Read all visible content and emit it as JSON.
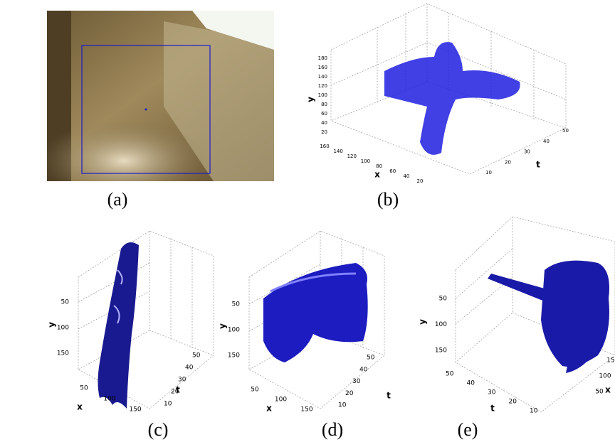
{
  "panels": [
    {
      "caption": "(a)"
    },
    {
      "caption": "(b)",
      "y_label": "y",
      "x_label": "x",
      "t_label": "t",
      "y_ticks": [
        20,
        40,
        60,
        80,
        100,
        120,
        140,
        160,
        180
      ],
      "x_ticks": [
        160,
        140,
        120,
        100,
        80,
        60,
        40,
        20
      ],
      "t_ticks": [
        10,
        20,
        30,
        40,
        50
      ]
    },
    {
      "caption": "(c)",
      "y_label": "y",
      "x_label": "x",
      "t_label": "t",
      "y_ticks": [
        50,
        100,
        150
      ],
      "x_ticks": [
        50,
        100,
        150
      ],
      "t_ticks": [
        10,
        20,
        30,
        40,
        50
      ]
    },
    {
      "caption": "(d)",
      "y_label": "y",
      "x_label": "x",
      "t_label": "t",
      "y_ticks": [
        50,
        100,
        150
      ],
      "x_ticks": [
        50,
        100,
        150
      ],
      "t_ticks": [
        10,
        20,
        30,
        40,
        50
      ]
    },
    {
      "caption": "(e)",
      "y_label": "y",
      "x_label": "x",
      "t_label": "t",
      "y_ticks": [
        50,
        100,
        150
      ],
      "x_ticks": [
        50,
        100,
        15
      ],
      "t_ticks": [
        50,
        40,
        30,
        20,
        10
      ]
    }
  ]
}
